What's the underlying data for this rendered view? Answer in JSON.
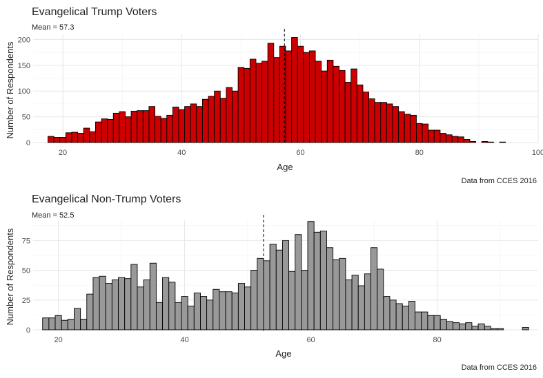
{
  "chart_data": [
    {
      "type": "bar",
      "title": "Evangelical Trump Voters",
      "subtitle": "Mean = 57.3",
      "xlabel": "Age",
      "ylabel": "Number of Respondents",
      "caption": "Data from CCES 2016",
      "mean": 57.3,
      "fill_color": "#cc0000",
      "xlim": [
        15,
        100
      ],
      "ylim": [
        0,
        210
      ],
      "xticks": [
        20,
        40,
        60,
        80,
        100
      ],
      "yticks": [
        0,
        50,
        100,
        150,
        200
      ],
      "grid": true,
      "x": [
        18,
        19,
        20,
        21,
        22,
        23,
        24,
        25,
        26,
        27,
        28,
        29,
        30,
        31,
        32,
        33,
        34,
        35,
        36,
        37,
        38,
        39,
        40,
        41,
        42,
        43,
        44,
        45,
        46,
        47,
        48,
        49,
        50,
        51,
        52,
        53,
        54,
        55,
        56,
        57,
        58,
        59,
        60,
        61,
        62,
        63,
        64,
        65,
        66,
        67,
        68,
        69,
        70,
        71,
        72,
        73,
        74,
        75,
        76,
        77,
        78,
        79,
        80,
        81,
        82,
        83,
        84,
        85,
        86,
        87,
        88,
        89,
        90,
        91,
        92,
        93,
        94,
        95
      ],
      "values": [
        12,
        10,
        10,
        19,
        20,
        18,
        28,
        21,
        40,
        46,
        45,
        57,
        60,
        50,
        61,
        62,
        62,
        70,
        51,
        47,
        53,
        69,
        64,
        70,
        75,
        70,
        84,
        90,
        100,
        86,
        107,
        100,
        146,
        144,
        162,
        154,
        158,
        193,
        165,
        187,
        178,
        204,
        187,
        175,
        178,
        158,
        139,
        160,
        148,
        140,
        117,
        143,
        112,
        98,
        85,
        78,
        78,
        75,
        70,
        60,
        55,
        53,
        37,
        36,
        24,
        24,
        18,
        15,
        12,
        11,
        6,
        2,
        0,
        2,
        1,
        0,
        1,
        0
      ]
    },
    {
      "type": "bar",
      "title": "Evangelical Non-Trump Voters",
      "subtitle": "Mean = 52.5",
      "xlabel": "Age",
      "ylabel": "Number of Respondents",
      "caption": "Data from CCES 2016",
      "mean": 52.5,
      "fill_color": "#999999",
      "xlim": [
        16,
        96
      ],
      "ylim": [
        0,
        92
      ],
      "xticks": [
        20,
        40,
        60,
        80
      ],
      "yticks": [
        0,
        25,
        50,
        75
      ],
      "grid": true,
      "x": [
        18,
        19,
        20,
        21,
        22,
        23,
        24,
        25,
        26,
        27,
        28,
        29,
        30,
        31,
        32,
        33,
        34,
        35,
        36,
        37,
        38,
        39,
        40,
        41,
        42,
        43,
        44,
        45,
        46,
        47,
        48,
        49,
        50,
        51,
        52,
        53,
        54,
        55,
        56,
        57,
        58,
        59,
        60,
        61,
        62,
        63,
        64,
        65,
        66,
        67,
        68,
        69,
        70,
        71,
        72,
        73,
        74,
        75,
        76,
        77,
        78,
        79,
        80,
        81,
        82,
        83,
        84,
        85,
        86,
        87,
        88,
        89,
        90,
        91,
        92,
        93,
        94
      ],
      "values": [
        10,
        10,
        12,
        8,
        9,
        18,
        9,
        30,
        44,
        45,
        39,
        42,
        44,
        43,
        55,
        36,
        42,
        56,
        23,
        44,
        40,
        23,
        28,
        20,
        31,
        28,
        25,
        34,
        32,
        32,
        31,
        39,
        36,
        50,
        60,
        58,
        72,
        67,
        75,
        49,
        80,
        50,
        91,
        82,
        83,
        69,
        59,
        60,
        42,
        46,
        37,
        47,
        69,
        51,
        28,
        25,
        22,
        20,
        24,
        15,
        15,
        12,
        12,
        9,
        7,
        6,
        5,
        6,
        3,
        5,
        3,
        1,
        1,
        0,
        0,
        0,
        2
      ]
    }
  ]
}
